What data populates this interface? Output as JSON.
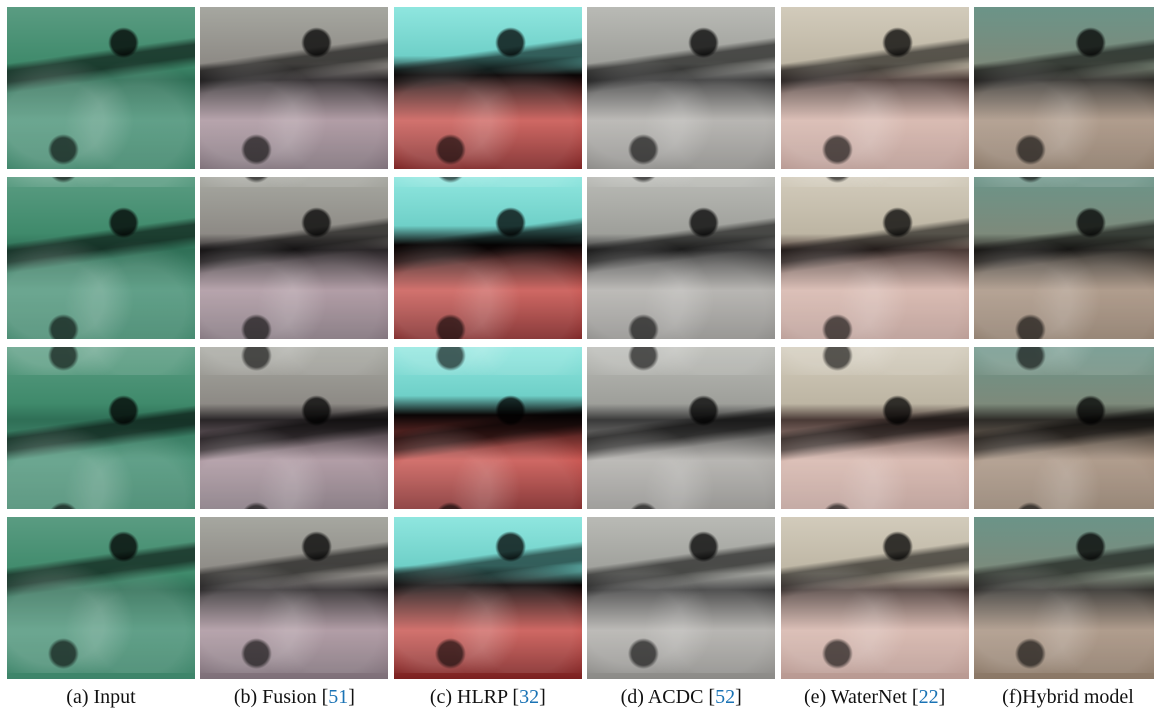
{
  "figure": {
    "captions": [
      {
        "text": "(a) Input"
      },
      {
        "text": "(b) Fusion [",
        "cite": "51",
        "after": "]"
      },
      {
        "text": "(c) HLRP [",
        "cite": "32",
        "after": "]"
      },
      {
        "text": "(d) ACDC [",
        "cite": "52",
        "after": "]"
      },
      {
        "text": "(e) WaterNet [",
        "cite": "22",
        "after": "]"
      },
      {
        "text": "(f)Hybrid model"
      }
    ]
  }
}
